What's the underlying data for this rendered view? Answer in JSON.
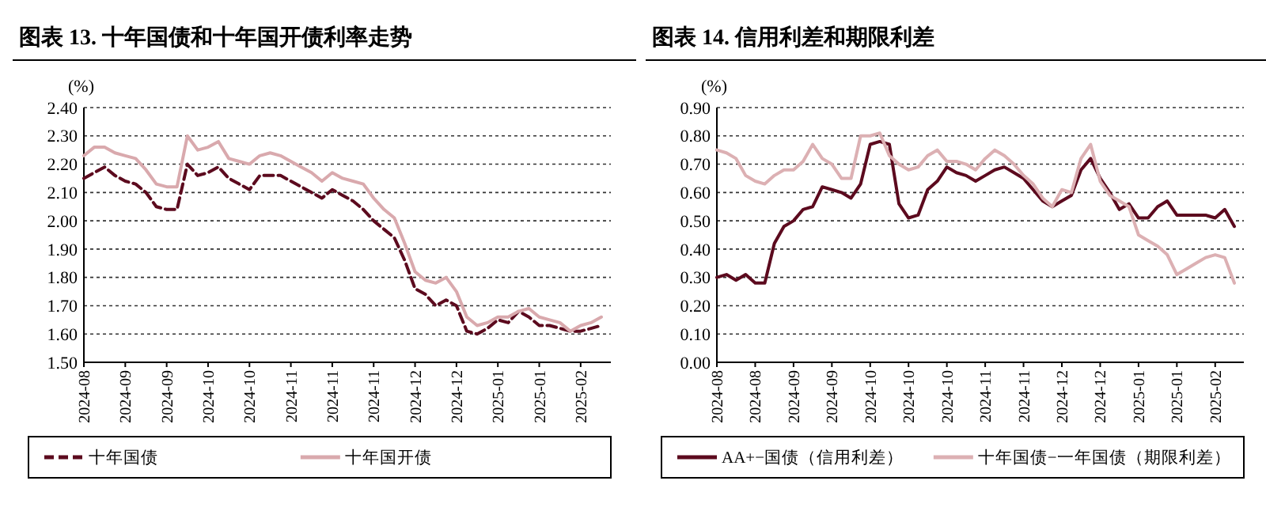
{
  "chart_data": [
    {
      "type": "line",
      "title": "图表 13. 十年国债和十年国开债利率走势",
      "ylabel": "(%)",
      "grid": "y",
      "legend": "bottom",
      "categories": [
        "2024-08",
        null,
        null,
        null,
        "2024-09",
        null,
        null,
        null,
        "2024-09",
        null,
        null,
        null,
        "2024-10",
        null,
        null,
        null,
        "2024-10",
        null,
        null,
        null,
        "2024-11",
        null,
        null,
        null,
        "2024-11",
        null,
        null,
        null,
        "2024-11",
        null,
        null,
        null,
        "2024-12",
        null,
        null,
        null,
        "2024-12",
        null,
        null,
        null,
        "2025-01",
        null,
        null,
        null,
        "2025-01",
        null,
        null,
        null,
        "2025-02",
        null,
        null
      ],
      "ylim": [
        1.5,
        2.4
      ],
      "yticks": [
        {
          "value": 1.5,
          "label": "1.50"
        },
        {
          "value": 1.6,
          "label": "1.60"
        },
        {
          "value": 1.7,
          "label": "1.70"
        },
        {
          "value": 1.8,
          "label": "1.80"
        },
        {
          "value": 1.9,
          "label": "1.90"
        },
        {
          "value": 2.0,
          "label": "2.00"
        },
        {
          "value": 2.1,
          "label": "2.10"
        },
        {
          "value": 2.2,
          "label": "2.20"
        },
        {
          "value": 2.3,
          "label": "2.30"
        },
        {
          "value": 2.4,
          "label": "2.40"
        }
      ],
      "series": [
        {
          "name": "十年国债",
          "color": "#5c0a1e",
          "line_style": "dashed",
          "values": [
            2.15,
            2.17,
            2.19,
            2.16,
            2.14,
            2.13,
            2.1,
            2.05,
            2.04,
            2.04,
            2.2,
            2.16,
            2.17,
            2.19,
            2.15,
            2.13,
            2.11,
            2.16,
            2.16,
            2.16,
            2.14,
            2.12,
            2.1,
            2.08,
            2.11,
            2.09,
            2.07,
            2.04,
            2.0,
            1.97,
            1.94,
            1.86,
            1.76,
            1.74,
            1.7,
            1.72,
            1.7,
            1.61,
            1.6,
            1.62,
            1.65,
            1.64,
            1.68,
            1.66,
            1.63,
            1.63,
            1.62,
            1.61,
            1.61,
            1.62,
            1.63
          ]
        },
        {
          "name": "十年国开债",
          "color": "#d9a9ad",
          "line_style": "solid",
          "values": [
            2.23,
            2.26,
            2.26,
            2.24,
            2.23,
            2.22,
            2.18,
            2.13,
            2.12,
            2.12,
            2.3,
            2.25,
            2.26,
            2.28,
            2.22,
            2.21,
            2.2,
            2.23,
            2.24,
            2.23,
            2.21,
            2.19,
            2.17,
            2.14,
            2.17,
            2.15,
            2.14,
            2.13,
            2.08,
            2.04,
            2.01,
            1.92,
            1.82,
            1.79,
            1.78,
            1.8,
            1.75,
            1.66,
            1.63,
            1.64,
            1.66,
            1.66,
            1.68,
            1.69,
            1.66,
            1.65,
            1.64,
            1.61,
            1.63,
            1.64,
            1.66
          ]
        }
      ]
    },
    {
      "type": "line",
      "title": "图表 14. 信用利差和期限利差",
      "ylabel": "(%)",
      "grid": "y",
      "legend": "bottom",
      "categories": [
        "2024-08",
        null,
        null,
        null,
        "2024-08",
        null,
        null,
        null,
        "2024-09",
        null,
        null,
        null,
        "2024-09",
        null,
        null,
        null,
        "2024-10",
        null,
        null,
        null,
        "2024-10",
        null,
        null,
        null,
        "2024-10",
        null,
        null,
        null,
        "2024-11",
        null,
        null,
        null,
        "2024-11",
        null,
        null,
        null,
        "2024-12",
        null,
        null,
        null,
        "2024-12",
        null,
        null,
        null,
        "2025-01",
        null,
        null,
        null,
        "2025-01",
        null,
        null,
        null,
        "2025-02",
        null,
        null
      ],
      "ylim": [
        0,
        0.9
      ],
      "yticks": [
        {
          "value": 0,
          "label": "0.00"
        },
        {
          "value": 0.1,
          "label": "0.10"
        },
        {
          "value": 0.2,
          "label": "0.20"
        },
        {
          "value": 0.3,
          "label": "0.30"
        },
        {
          "value": 0.4,
          "label": "0.40"
        },
        {
          "value": 0.5,
          "label": "0.50"
        },
        {
          "value": 0.6,
          "label": "0.60"
        },
        {
          "value": 0.7,
          "label": "0.70"
        },
        {
          "value": 0.8,
          "label": "0.80"
        },
        {
          "value": 0.9,
          "label": "0.90"
        }
      ],
      "series": [
        {
          "name": "AA+−国债（信用利差）",
          "color": "#5c0a1e",
          "line_style": "solid",
          "values": [
            0.3,
            0.31,
            0.29,
            0.31,
            0.28,
            0.28,
            0.42,
            0.48,
            0.5,
            0.54,
            0.55,
            0.62,
            0.61,
            0.6,
            0.58,
            0.63,
            0.77,
            0.78,
            0.77,
            0.56,
            0.51,
            0.52,
            0.61,
            0.64,
            0.69,
            0.67,
            0.66,
            0.64,
            0.66,
            0.68,
            0.69,
            0.67,
            0.65,
            0.61,
            0.57,
            0.55,
            0.57,
            0.59,
            0.68,
            0.72,
            0.65,
            0.6,
            0.54,
            0.56,
            0.51,
            0.51,
            0.55,
            0.57,
            0.52,
            0.52,
            0.52,
            0.52,
            0.51,
            0.54,
            0.48
          ]
        },
        {
          "name": "十年国债−一年国债（期限利差）",
          "color": "#dcb0b3",
          "line_style": "solid",
          "values": [
            0.75,
            0.74,
            0.72,
            0.66,
            0.64,
            0.63,
            0.66,
            0.68,
            0.68,
            0.71,
            0.77,
            0.72,
            0.7,
            0.65,
            0.65,
            0.8,
            0.8,
            0.81,
            0.73,
            0.7,
            0.68,
            0.69,
            0.73,
            0.75,
            0.71,
            0.71,
            0.7,
            0.68,
            0.72,
            0.75,
            0.73,
            0.7,
            0.66,
            0.63,
            0.58,
            0.55,
            0.61,
            0.6,
            0.72,
            0.77,
            0.64,
            0.59,
            0.57,
            0.55,
            0.45,
            0.43,
            0.41,
            0.38,
            0.31,
            0.33,
            0.35,
            0.37,
            0.38,
            0.37,
            0.28
          ]
        }
      ]
    }
  ]
}
